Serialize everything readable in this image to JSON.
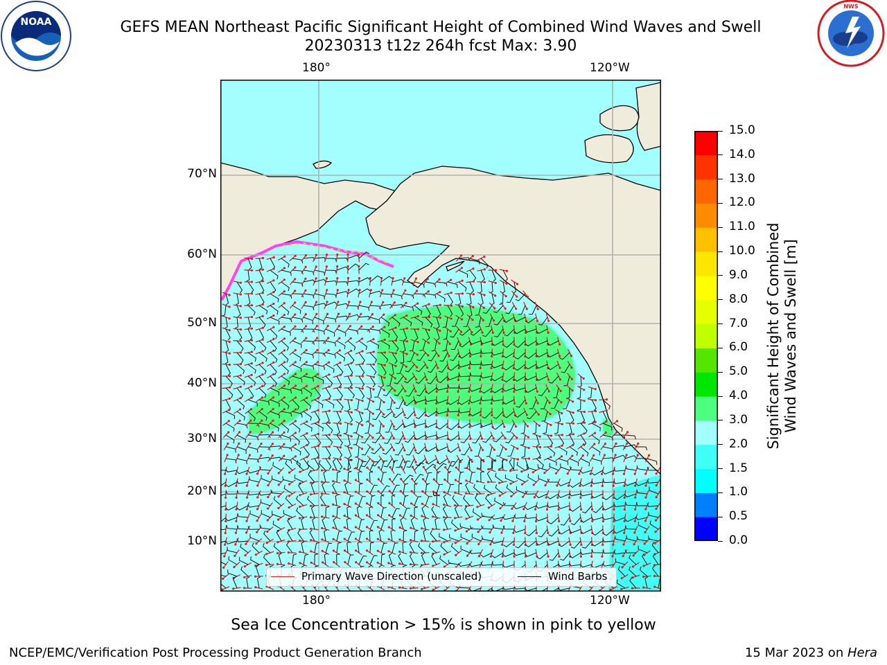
{
  "header": {
    "title_line1": "GEFS MEAN Northeast Pacific Significant Height of Combined Wind Waves and Swell",
    "title_line2": "20230313 t12z 264h fcst   Max: 3.90"
  },
  "logos": {
    "noaa": {
      "text": "NOAA",
      "ring_text": "NATIONAL OCEANIC AND ATMOSPHERIC ADMINISTRATION · U.S. DEPARTMENT OF COMMERCE"
    },
    "nws": {
      "ring_text": "NATIONAL WEATHER SERVICE"
    }
  },
  "map": {
    "lon_labels_top": [
      "180°",
      "120°W"
    ],
    "lon_labels_bottom": [
      "180°",
      "120°W"
    ],
    "lat_labels": [
      "70°N",
      "60°N",
      "50°N",
      "40°N",
      "30°N",
      "20°N",
      "10°N"
    ],
    "colors": {
      "land": "#efecdc",
      "ocean_base": "#a2fffe",
      "swell_3_4": "#4dff7f",
      "swell_2_3_edge": "#7ff9f5",
      "deep_cyan": "#40fff6",
      "ice_pink": "#ff40ff",
      "ice_yellow": "#ffcc33",
      "grid": "#b0b0b0",
      "wave_arrow": "#e41a1c",
      "wind_barb": "#111111"
    },
    "legend": {
      "wave_label": "Primary Wave Direction (unscaled)",
      "wind_label": "Wind Barbs"
    }
  },
  "colorbar": {
    "ticks": [
      "15.0",
      "14.0",
      "13.0",
      "12.0",
      "11.0",
      "10.0",
      "9.0",
      "8.0",
      "7.0",
      "6.0",
      "5.0",
      "4.0",
      "3.0",
      "2.0",
      "1.5",
      "1.0",
      "0.5",
      "0.0"
    ],
    "colors_bottom_to_top": [
      "#0000ff",
      "#0080ff",
      "#00ffff",
      "#40fff6",
      "#a2fffe",
      "#4dff7f",
      "#00e600",
      "#55e600",
      "#bfff00",
      "#e6ff00",
      "#ffff00",
      "#ffe600",
      "#ffc000",
      "#ff8c00",
      "#ff6600",
      "#ff3300",
      "#ff0000"
    ],
    "label_line1": "Significant Height of Combined",
    "label_line2": "Wind Waves and Swell [m]"
  },
  "notes": {
    "sea_ice": "Sea Ice Concentration > 15% is shown in pink to yellow"
  },
  "footer": {
    "left": "NCEP/EMC/Verification Post Processing Product Generation Branch",
    "right_date": "15 Mar 2023 on ",
    "right_host": "Hera"
  }
}
